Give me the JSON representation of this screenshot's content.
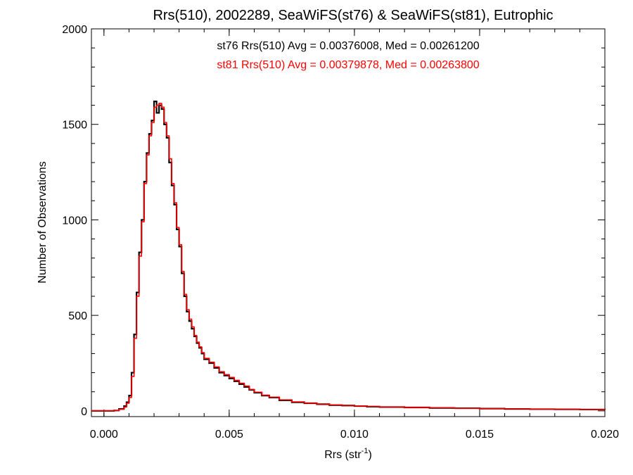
{
  "chart_data": {
    "type": "line",
    "title": "Rrs(510), 2002289, SeaWiFS(st76) & SeaWiFS(st81), Eutrophic",
    "xlabel": "Rrs (str",
    "xlabel_sup": "-1",
    "xlabel_close": ")",
    "ylabel": "Number of Observations",
    "xlim": [
      -0.0005,
      0.02
    ],
    "ylim": [
      -30,
      2000
    ],
    "xticks": [
      0.0,
      0.005,
      0.01,
      0.015,
      0.02
    ],
    "xtick_labels": [
      "0.000",
      "0.005",
      "0.010",
      "0.015",
      "0.020"
    ],
    "yticks": [
      0,
      500,
      1000,
      1500,
      2000
    ],
    "ytick_labels": [
      "0",
      "500",
      "1000",
      "1500",
      "2000"
    ],
    "annotations": [
      {
        "text": "st76 Rrs(510) Avg = 0.00376008, Med = 0.00261200",
        "color": "#000000"
      },
      {
        "text": "st81 Rrs(510) Avg = 0.00379878, Med = 0.00263800",
        "color": "#ff0000"
      }
    ],
    "series": [
      {
        "color": "#000000",
        "x": [
          -0.0005,
          0.0004,
          0.0006,
          0.0008,
          0.0009,
          0.001,
          0.0011,
          0.0012,
          0.0013,
          0.0014,
          0.0015,
          0.0016,
          0.0017,
          0.0018,
          0.0019,
          0.002,
          0.0021,
          0.0022,
          0.0023,
          0.0024,
          0.0025,
          0.0026,
          0.0027,
          0.0028,
          0.0029,
          0.003,
          0.0031,
          0.0032,
          0.0033,
          0.0034,
          0.0035,
          0.0036,
          0.0037,
          0.0038,
          0.0039,
          0.004,
          0.0042,
          0.0044,
          0.0046,
          0.0048,
          0.005,
          0.0052,
          0.0054,
          0.0056,
          0.0058,
          0.006,
          0.0063,
          0.0066,
          0.007,
          0.0075,
          0.008,
          0.0085,
          0.009,
          0.0095,
          0.01,
          0.0105,
          0.011,
          0.012,
          0.013,
          0.014,
          0.015,
          0.016,
          0.017,
          0.018,
          0.019,
          0.02
        ],
        "y": [
          0,
          2,
          10,
          25,
          45,
          80,
          200,
          400,
          620,
          830,
          1000,
          1200,
          1350,
          1450,
          1520,
          1620,
          1560,
          1600,
          1580,
          1500,
          1430,
          1300,
          1180,
          1080,
          950,
          860,
          720,
          600,
          520,
          470,
          430,
          390,
          355,
          330,
          300,
          270,
          250,
          225,
          200,
          185,
          170,
          155,
          140,
          125,
          110,
          95,
          80,
          70,
          55,
          45,
          40,
          35,
          30,
          28,
          25,
          22,
          20,
          18,
          15,
          14,
          12,
          10,
          9,
          8,
          7,
          6
        ]
      },
      {
        "color": "#ff0000",
        "x": [
          -0.0005,
          0.0004,
          0.0006,
          0.0008,
          0.0009,
          0.001,
          0.0011,
          0.0012,
          0.0013,
          0.0014,
          0.0015,
          0.0016,
          0.0017,
          0.0018,
          0.0019,
          0.002,
          0.0021,
          0.0022,
          0.0023,
          0.0024,
          0.0025,
          0.0026,
          0.0027,
          0.0028,
          0.0029,
          0.003,
          0.0031,
          0.0032,
          0.0033,
          0.0034,
          0.0035,
          0.0036,
          0.0037,
          0.0038,
          0.0039,
          0.004,
          0.0042,
          0.0044,
          0.0046,
          0.0048,
          0.005,
          0.0052,
          0.0054,
          0.0056,
          0.0058,
          0.006,
          0.0063,
          0.0066,
          0.007,
          0.0075,
          0.008,
          0.0085,
          0.009,
          0.0095,
          0.01,
          0.0105,
          0.011,
          0.012,
          0.013,
          0.014,
          0.015,
          0.016,
          0.017,
          0.018,
          0.019,
          0.02
        ],
        "y": [
          0,
          2,
          8,
          20,
          40,
          70,
          180,
          380,
          600,
          810,
          990,
          1190,
          1340,
          1440,
          1510,
          1590,
          1600,
          1610,
          1590,
          1510,
          1440,
          1320,
          1190,
          1090,
          960,
          870,
          730,
          610,
          530,
          480,
          440,
          395,
          360,
          335,
          305,
          275,
          255,
          230,
          205,
          190,
          175,
          160,
          145,
          130,
          112,
          98,
          82,
          72,
          58,
          47,
          41,
          36,
          31,
          29,
          26,
          23,
          21,
          18,
          16,
          14,
          12,
          11,
          9,
          8,
          7,
          6
        ]
      }
    ],
    "grid": false,
    "step_style": "histogram"
  }
}
